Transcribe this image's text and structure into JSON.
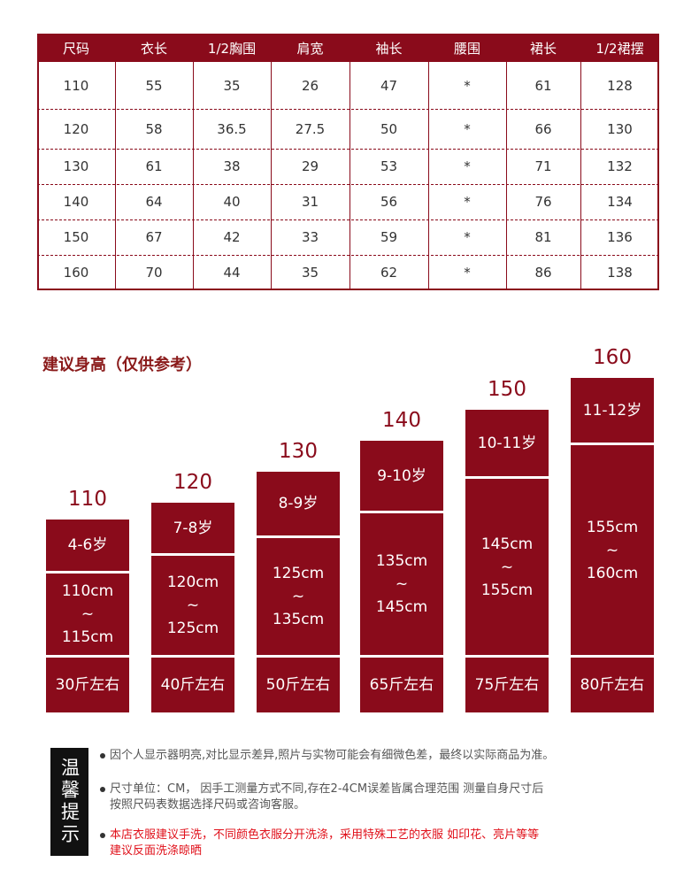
{
  "table": {
    "header": [
      "尺码",
      "衣长",
      "1/2胸围",
      "肩宽",
      "袖长",
      "腰围",
      "裙长",
      "1/2裙摆"
    ],
    "rows": [
      [
        "110",
        "55",
        "35",
        "26",
        "47",
        "*",
        "61",
        "128"
      ],
      [
        "120",
        "58",
        "36.5",
        "27.5",
        "50",
        "*",
        "66",
        "130"
      ],
      [
        "130",
        "61",
        "38",
        "29",
        "53",
        "*",
        "71",
        "132"
      ],
      [
        "140",
        "64",
        "40",
        "31",
        "56",
        "*",
        "76",
        "134"
      ],
      [
        "150",
        "67",
        "42",
        "33",
        "59",
        "*",
        "81",
        "136"
      ],
      [
        "160",
        "70",
        "44",
        "35",
        "62",
        "*",
        "86",
        "138"
      ]
    ]
  },
  "recommend": {
    "title": "建议身高（仅供参考）",
    "separator": "~",
    "columns": [
      {
        "size": "110",
        "age": "4-6岁",
        "height_from": "110cm",
        "height_to": "115cm",
        "weight": "30斤左右"
      },
      {
        "size": "120",
        "age": "7-8岁",
        "height_from": "120cm",
        "height_to": "125cm",
        "weight": "40斤左右"
      },
      {
        "size": "130",
        "age": "8-9岁",
        "height_from": "125cm",
        "height_to": "135cm",
        "weight": "50斤左右"
      },
      {
        "size": "140",
        "age": "9-10岁",
        "height_from": "135cm",
        "height_to": "145cm",
        "weight": "65斤左右"
      },
      {
        "size": "150",
        "age": "10-11岁",
        "height_from": "145cm",
        "height_to": "155cm",
        "weight": "75斤左右"
      },
      {
        "size": "160",
        "age": "11-12岁",
        "height_from": "155cm",
        "height_to": "160cm",
        "weight": "80斤左右"
      }
    ]
  },
  "notes": {
    "label": "温馨提示",
    "items": [
      {
        "lines": [
          "因个人显示器明亮,对比显示差异,照片与实物可能会有细微色差，最终以实际商品为准。"
        ]
      },
      {
        "lines": [
          "尺寸单位：CM， 因手工测量方式不同,存在2-4CM误差皆属合理范围  测量自身尺寸后",
          "按照尺码表数据选择尺码或咨询客服。"
        ]
      },
      {
        "lines": [
          "本店衣服建议手洗，不同颜色衣服分开洗涤，采用特殊工艺的衣服 如印花、亮片等等",
          "建议反面洗涤晾晒"
        ]
      }
    ]
  }
}
